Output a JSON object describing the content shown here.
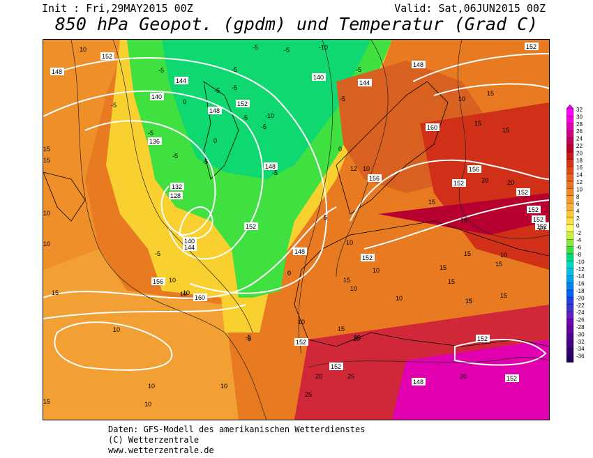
{
  "header": {
    "init": "Init : Fri,29MAY2015 00Z",
    "valid": "Valid: Sat,06JUN2015 00Z",
    "title": "850 hPa Geopot. (gpdm) und Temperatur (Grad C)"
  },
  "footer": {
    "line1": "Daten: GFS-Modell des amerikanischen Wetterdienstes",
    "line2": "(C) Wetterzentrale",
    "line3": "www.wetterzentrale.de"
  },
  "colorscale": {
    "labels": [
      "32",
      "30",
      "28",
      "26",
      "24",
      "22",
      "20",
      "18",
      "16",
      "14",
      "12",
      "10",
      "8",
      "6",
      "4",
      "2",
      "0",
      "-2",
      "-4",
      "-6",
      "-8",
      "-10",
      "-12",
      "-14",
      "-16",
      "-18",
      "-20",
      "-22",
      "-24",
      "-26",
      "-28",
      "-30",
      "-32",
      "-34",
      "-36"
    ],
    "colors": [
      "#ff00ff",
      "#f000e0",
      "#e000b0",
      "#d00080",
      "#c00050",
      "#b80030",
      "#c81818",
      "#d83018",
      "#e04818",
      "#e86020",
      "#ec7420",
      "#f08828",
      "#f49c30",
      "#f8b038",
      "#fcc838",
      "#ffe040",
      "#ffff60",
      "#c8f040",
      "#88e840",
      "#40e040",
      "#00d880",
      "#00d8c0",
      "#00c0e0",
      "#00a0f0",
      "#0080f0",
      "#0060f0",
      "#2040e0",
      "#4030d0",
      "#6020c0",
      "#7000b0",
      "#6000a0",
      "#500090",
      "#400080",
      "#300070",
      "#200060"
    ]
  },
  "geopotential_labels": [
    "152",
    "148",
    "144",
    "140",
    "136",
    "132",
    "128",
    "148",
    "152",
    "140",
    "144",
    "148",
    "152",
    "156",
    "160",
    "152",
    "148",
    "144",
    "140",
    "152",
    "156",
    "160",
    "152",
    "148",
    "152",
    "152",
    "156",
    "152",
    "148",
    "152",
    "152",
    "152",
    "152",
    "152"
  ],
  "temperature_labels": [
    "10",
    "-5",
    "-5",
    "-5",
    "-5",
    "-10",
    "-5",
    "-5",
    "-5",
    "-10",
    "-5",
    "-5",
    "-5",
    "-5",
    "0",
    "-5",
    "-5",
    "0",
    "-5",
    "-5",
    "0",
    "-5",
    "-5",
    "0",
    "5",
    "10",
    "15",
    "15",
    "15",
    "20",
    "20",
    "15",
    "10",
    "12",
    "10",
    "15",
    "15",
    "15",
    "10",
    "10",
    "15",
    "15",
    "15",
    "15",
    "15",
    "10",
    "10",
    "10",
    "15",
    "15",
    "10",
    "10",
    "15",
    "20",
    "20",
    "25",
    "25",
    "20",
    "10",
    "10",
    "10",
    "15",
    "5",
    "0",
    "-5",
    "10",
    "10",
    "10",
    "10",
    "15",
    "15",
    "20",
    "20"
  ]
}
